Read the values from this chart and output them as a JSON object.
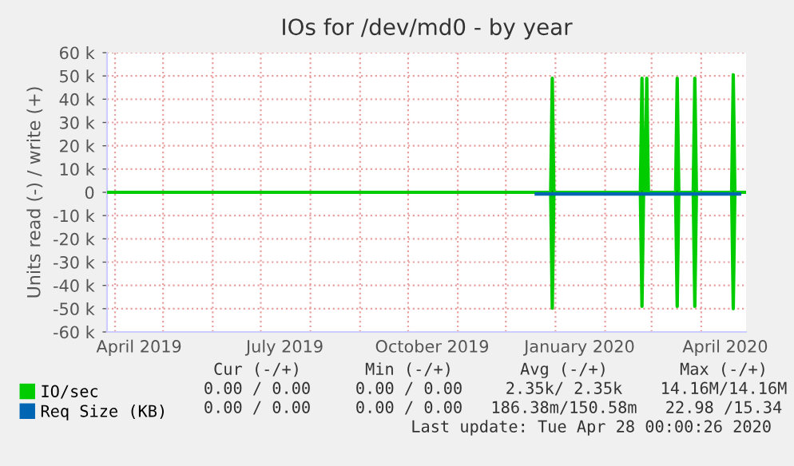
{
  "chart_data": {
    "type": "line",
    "title": "IOs for /dev/md0 - by year",
    "ylabel": "Units read (-) / write (+)",
    "xlim": [
      "2019-03-27",
      "2020-04-29"
    ],
    "xticks": [
      {
        "value": "2019-04-16",
        "label": "April 2019"
      },
      {
        "value": "2019-07-16",
        "label": "July 2019"
      },
      {
        "value": "2019-10-16",
        "label": "October 2019"
      },
      {
        "value": "2020-01-16",
        "label": "January 2020"
      },
      {
        "value": "2020-04-16",
        "label": "April 2020"
      }
    ],
    "ylim": [
      -60000,
      60000
    ],
    "yticks": [
      {
        "value": -60000,
        "label": "-60 k"
      },
      {
        "value": -50000,
        "label": "-50 k"
      },
      {
        "value": -40000,
        "label": "-40 k"
      },
      {
        "value": -30000,
        "label": "-30 k"
      },
      {
        "value": -20000,
        "label": "-20 k"
      },
      {
        "value": -10000,
        "label": "-10 k"
      },
      0,
      {
        "value": 10000,
        "label": "10 k"
      },
      {
        "value": 20000,
        "label": "20 k"
      },
      {
        "value": 30000,
        "label": "30 k"
      },
      {
        "value": 40000,
        "label": "40 k"
      },
      {
        "value": 50000,
        "label": "50 k"
      },
      {
        "value": 60000,
        "label": "60 k"
      }
    ],
    "grid": true,
    "legend": "bottom",
    "marker": "none",
    "line_style": "solid",
    "series": [
      {
        "name": "IO/sec",
        "color": "#00cc00",
        "x": [
          "2019-03-27",
          "2019-12-29",
          "2019-12-30",
          "2019-12-31",
          "2020-02-23",
          "2020-02-24",
          "2020-02-25",
          "2020-02-26",
          "2020-02-27",
          "2020-02-28",
          "2020-03-16",
          "2020-03-17",
          "2020-03-18",
          "2020-03-27",
          "2020-03-28",
          "2020-03-29",
          "2020-04-20",
          "2020-04-21",
          "2020-04-22",
          "2020-04-28"
        ],
        "values": [
          0,
          0,
          49000,
          0,
          0,
          49000,
          0,
          0,
          49000,
          0,
          0,
          49000,
          0,
          0,
          49000,
          0,
          0,
          50500,
          0,
          0
        ]
      },
      {
        "color": "#00cc00",
        "x": [
          "2019-03-27",
          "2019-12-29",
          "2019-12-30",
          "2019-12-31",
          "2020-02-23",
          "2020-02-24",
          "2020-02-25",
          "2020-03-16",
          "2020-03-17",
          "2020-03-18",
          "2020-03-27",
          "2020-03-28",
          "2020-03-29",
          "2020-04-20",
          "2020-04-21",
          "2020-04-22",
          "2020-04-28"
        ],
        "values": [
          0,
          0,
          -49800,
          0,
          0,
          -49000,
          0,
          0,
          -49000,
          0,
          0,
          -49000,
          0,
          0,
          -50000,
          0,
          0
        ]
      },
      {
        "name": "Req Size (KB)",
        "color": "#0066b3",
        "x": [
          "2019-12-20",
          "2020-02-20",
          "2020-02-27",
          "2020-04-25"
        ],
        "values": [
          -700,
          -700,
          -700,
          -700
        ]
      }
    ],
    "ref_lines": [
      {
        "axis": "y",
        "value": 0,
        "color": "#000000"
      }
    ],
    "annotations": [
      "Cur (-/+)",
      "Min (-/+)",
      "Avg (-/+)",
      "Max (-/+)",
      "0.00 / 0.00",
      "0.00 / 0.00",
      "2.35k/ 2.35k",
      "14.16M/14.16M",
      "0.00 / 0.00",
      "0.00 / 0.00",
      "186.38m/150.58m",
      "22.98 /15.34",
      "Last update: Tue Apr 28 00:00:26 2020"
    ]
  }
}
